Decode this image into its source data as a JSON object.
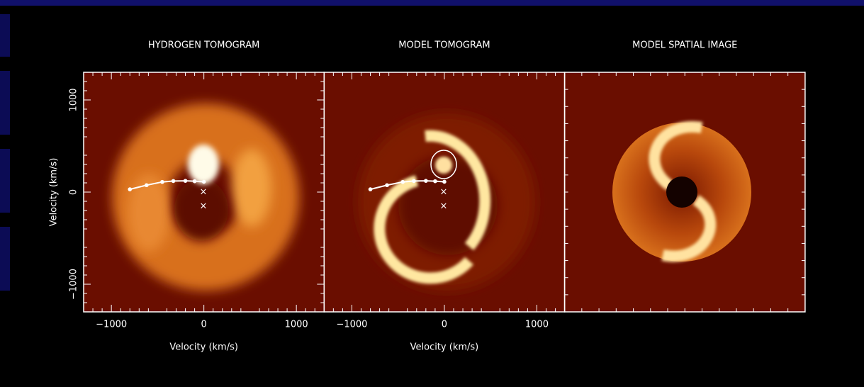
{
  "chart_data": [
    {
      "type": "tomogram",
      "title": "HYDROGEN TOMOGRAM",
      "xlabel": "Velocity (km/s)",
      "ylabel": "Velocity (km/s)",
      "xlim": [
        -1300,
        1300
      ],
      "ylim": [
        -1300,
        1300
      ],
      "xticks": [
        {
          "value": -1000,
          "label": "−1000"
        },
        0,
        1000
      ],
      "yticks": [
        {
          "value": -1000,
          "label": "−1000"
        },
        0,
        1000
      ],
      "x": [
        -800,
        -620,
        -450,
        -330,
        -200,
        -100,
        0
      ],
      "values": [
        30,
        75,
        110,
        120,
        122,
        118,
        112
      ]
    },
    {
      "type": "tomogram",
      "title": "MODEL TOMOGRAM",
      "xlabel": "Velocity (km/s)",
      "xlim": [
        -1300,
        1300
      ],
      "ylim": [
        -1300,
        1300
      ],
      "xticks": [
        {
          "value": -1000,
          "label": "−1000"
        },
        0,
        1000
      ],
      "x": [
        -800,
        -620,
        -450,
        -330,
        -200,
        -100,
        0
      ],
      "values": [
        30,
        75,
        110,
        120,
        122,
        118,
        112
      ]
    },
    {
      "type": "image",
      "title": "MODEL SPATIAL IMAGE"
    }
  ]
}
